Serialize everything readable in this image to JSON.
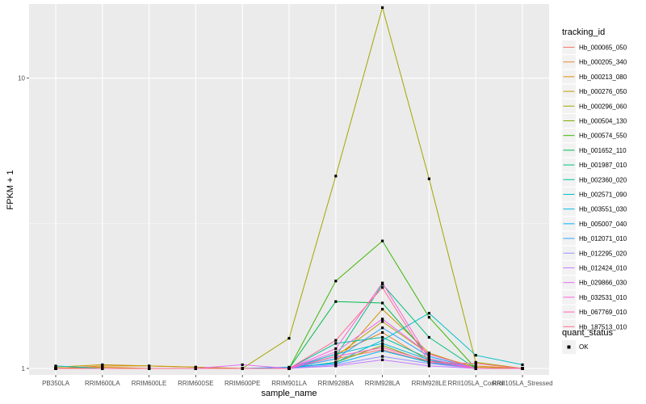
{
  "chart_data": {
    "type": "line",
    "xlabel": "sample_name",
    "ylabel": "FPKM + 1",
    "categories": [
      "PB350LA",
      "RRIM600LA",
      "RRIM600LE",
      "RRIM600SE",
      "RRIM600PE",
      "RRIM901LA",
      "RRIM928BA",
      "RRIM928LA",
      "RRIM928LE",
      "RRII105LA_Control",
      "RRII105LA_Stressed"
    ],
    "y_scale": "log10",
    "ylim": [
      0.95,
      18
    ],
    "y_ticks": [
      1,
      10
    ],
    "y_tick_labels": [
      "1",
      "10"
    ],
    "grid": true,
    "legend": {
      "title": "tracking_id",
      "position": "right",
      "shape_title": "quant_status",
      "shape_label": "OK"
    },
    "series": [
      {
        "name": "Hb_000065_050",
        "color": "#F8766D",
        "values": [
          1.0,
          1.0,
          1.0,
          1.0,
          1.0,
          1.0,
          1.08,
          1.16,
          1.05,
          1.0,
          1.0
        ]
      },
      {
        "name": "Hb_000205_340",
        "color": "#EA8331",
        "values": [
          1.0,
          1.02,
          1.02,
          1.01,
          1.0,
          1.0,
          1.12,
          1.33,
          1.06,
          1.02,
          1.0
        ]
      },
      {
        "name": "Hb_000213_080",
        "color": "#D89000",
        "values": [
          1.0,
          1.01,
          1.0,
          1.0,
          1.0,
          1.0,
          1.05,
          1.6,
          1.13,
          1.0,
          1.0
        ]
      },
      {
        "name": "Hb_000276_050",
        "color": "#C09B00",
        "values": [
          1.01,
          1.03,
          1.02,
          1.01,
          1.0,
          1.0,
          1.1,
          1.45,
          1.12,
          1.01,
          1.0
        ]
      },
      {
        "name": "Hb_000296_060",
        "color": "#A3A500",
        "values": [
          1.0,
          1.0,
          1.0,
          1.0,
          1.0,
          1.27,
          4.6,
          17.5,
          4.5,
          1.05,
          1.0
        ]
      },
      {
        "name": "Hb_000504_130",
        "color": "#7CAE00",
        "values": [
          1.0,
          1.0,
          1.0,
          1.0,
          1.0,
          1.0,
          1.05,
          1.2,
          1.05,
          1.0,
          1.0
        ]
      },
      {
        "name": "Hb_000574_550",
        "color": "#39B600",
        "values": [
          1.0,
          1.0,
          1.0,
          1.0,
          1.0,
          1.0,
          2.0,
          2.75,
          1.5,
          1.0,
          1.0
        ]
      },
      {
        "name": "Hb_001652_110",
        "color": "#00BB4E",
        "values": [
          1.0,
          1.0,
          1.0,
          1.0,
          1.0,
          1.0,
          1.7,
          1.68,
          1.1,
          1.0,
          1.0
        ]
      },
      {
        "name": "Hb_001987_010",
        "color": "#00BF7D",
        "values": [
          1.0,
          1.0,
          1.0,
          1.0,
          1.0,
          1.0,
          1.1,
          1.95,
          1.28,
          1.0,
          1.0
        ]
      },
      {
        "name": "Hb_002360_020",
        "color": "#00C1A3",
        "values": [
          1.0,
          1.0,
          1.0,
          1.0,
          1.0,
          1.0,
          1.22,
          1.28,
          1.08,
          1.0,
          1.0
        ]
      },
      {
        "name": "Hb_002571_090",
        "color": "#00BFC4",
        "values": [
          1.02,
          1.0,
          1.0,
          1.0,
          1.0,
          1.0,
          1.05,
          1.25,
          1.55,
          1.11,
          1.03
        ]
      },
      {
        "name": "Hb_003551_030",
        "color": "#00BAE0",
        "values": [
          1.0,
          1.0,
          1.0,
          1.0,
          1.0,
          1.0,
          1.12,
          1.22,
          1.07,
          1.0,
          1.0
        ]
      },
      {
        "name": "Hb_005007_040",
        "color": "#00B0F6",
        "values": [
          1.0,
          1.0,
          1.0,
          1.0,
          1.0,
          1.01,
          1.04,
          1.15,
          1.05,
          1.0,
          1.0
        ]
      },
      {
        "name": "Hb_012071_010",
        "color": "#35A2FF",
        "values": [
          1.0,
          1.0,
          1.0,
          1.0,
          1.0,
          1.0,
          1.08,
          1.38,
          1.1,
          1.0,
          1.0
        ]
      },
      {
        "name": "Hb_012295_020",
        "color": "#9590FF",
        "values": [
          1.0,
          1.0,
          1.0,
          1.0,
          1.0,
          1.0,
          1.03,
          1.1,
          1.04,
          1.0,
          1.0
        ]
      },
      {
        "name": "Hb_012424_010",
        "color": "#C77CFF",
        "values": [
          1.0,
          1.0,
          1.0,
          1.0,
          1.0,
          1.0,
          1.02,
          1.07,
          1.02,
          1.0,
          1.0
        ]
      },
      {
        "name": "Hb_029866_030",
        "color": "#E76BF3",
        "values": [
          1.0,
          1.0,
          1.0,
          1.0,
          1.03,
          1.0,
          1.14,
          1.48,
          1.12,
          1.0,
          1.0
        ]
      },
      {
        "name": "Hb_032531_010",
        "color": "#FA62DB",
        "values": [
          1.0,
          1.0,
          1.0,
          1.0,
          1.0,
          1.0,
          1.17,
          1.97,
          1.08,
          1.0,
          1.0
        ]
      },
      {
        "name": "Hb_067769_010",
        "color": "#FF62BC",
        "values": [
          1.0,
          1.0,
          1.0,
          1.0,
          1.0,
          1.0,
          1.1,
          1.18,
          1.06,
          1.0,
          1.0
        ]
      },
      {
        "name": "Hb_187513_010",
        "color": "#FF6C91",
        "values": [
          1.0,
          1.0,
          1.0,
          1.0,
          1.0,
          1.0,
          1.25,
          1.9,
          1.05,
          1.04,
          1.0
        ]
      }
    ]
  }
}
